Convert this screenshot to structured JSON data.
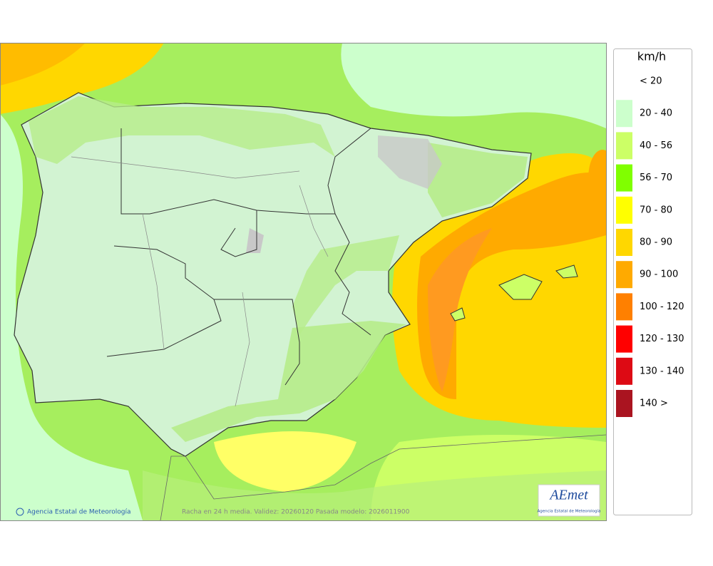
{
  "legend": {
    "unit": "km/h",
    "items": [
      {
        "label": "< 20"
      },
      {
        "label": "20 - 40",
        "color": "#ccffcc"
      },
      {
        "label": "40 - 56",
        "color": "#ccff66"
      },
      {
        "label": "56 - 70",
        "color": "#80ff00"
      },
      {
        "label": "70 - 80",
        "color": "#ffff00"
      },
      {
        "label": "80 - 90",
        "color": "#ffd700"
      },
      {
        "label": "90 - 100",
        "color": "#ffaa00"
      },
      {
        "label": "100 - 120",
        "color": "#ff8000"
      },
      {
        "label": "120 - 130",
        "color": "#ff0000"
      },
      {
        "label": "130 - 140",
        "color": "#dd0a14"
      },
      {
        "label": "140 >",
        "color": "#aa1420"
      }
    ]
  },
  "footer": {
    "credit": "Agencia Estatal de Meteorología",
    "caption": "Racha en 24 h media. Validez: 20260120 Pasada modelo: 2026011900"
  },
  "logo": {
    "name": "AEmet",
    "subtitle": "Agencia Estatal de Meteorología"
  }
}
